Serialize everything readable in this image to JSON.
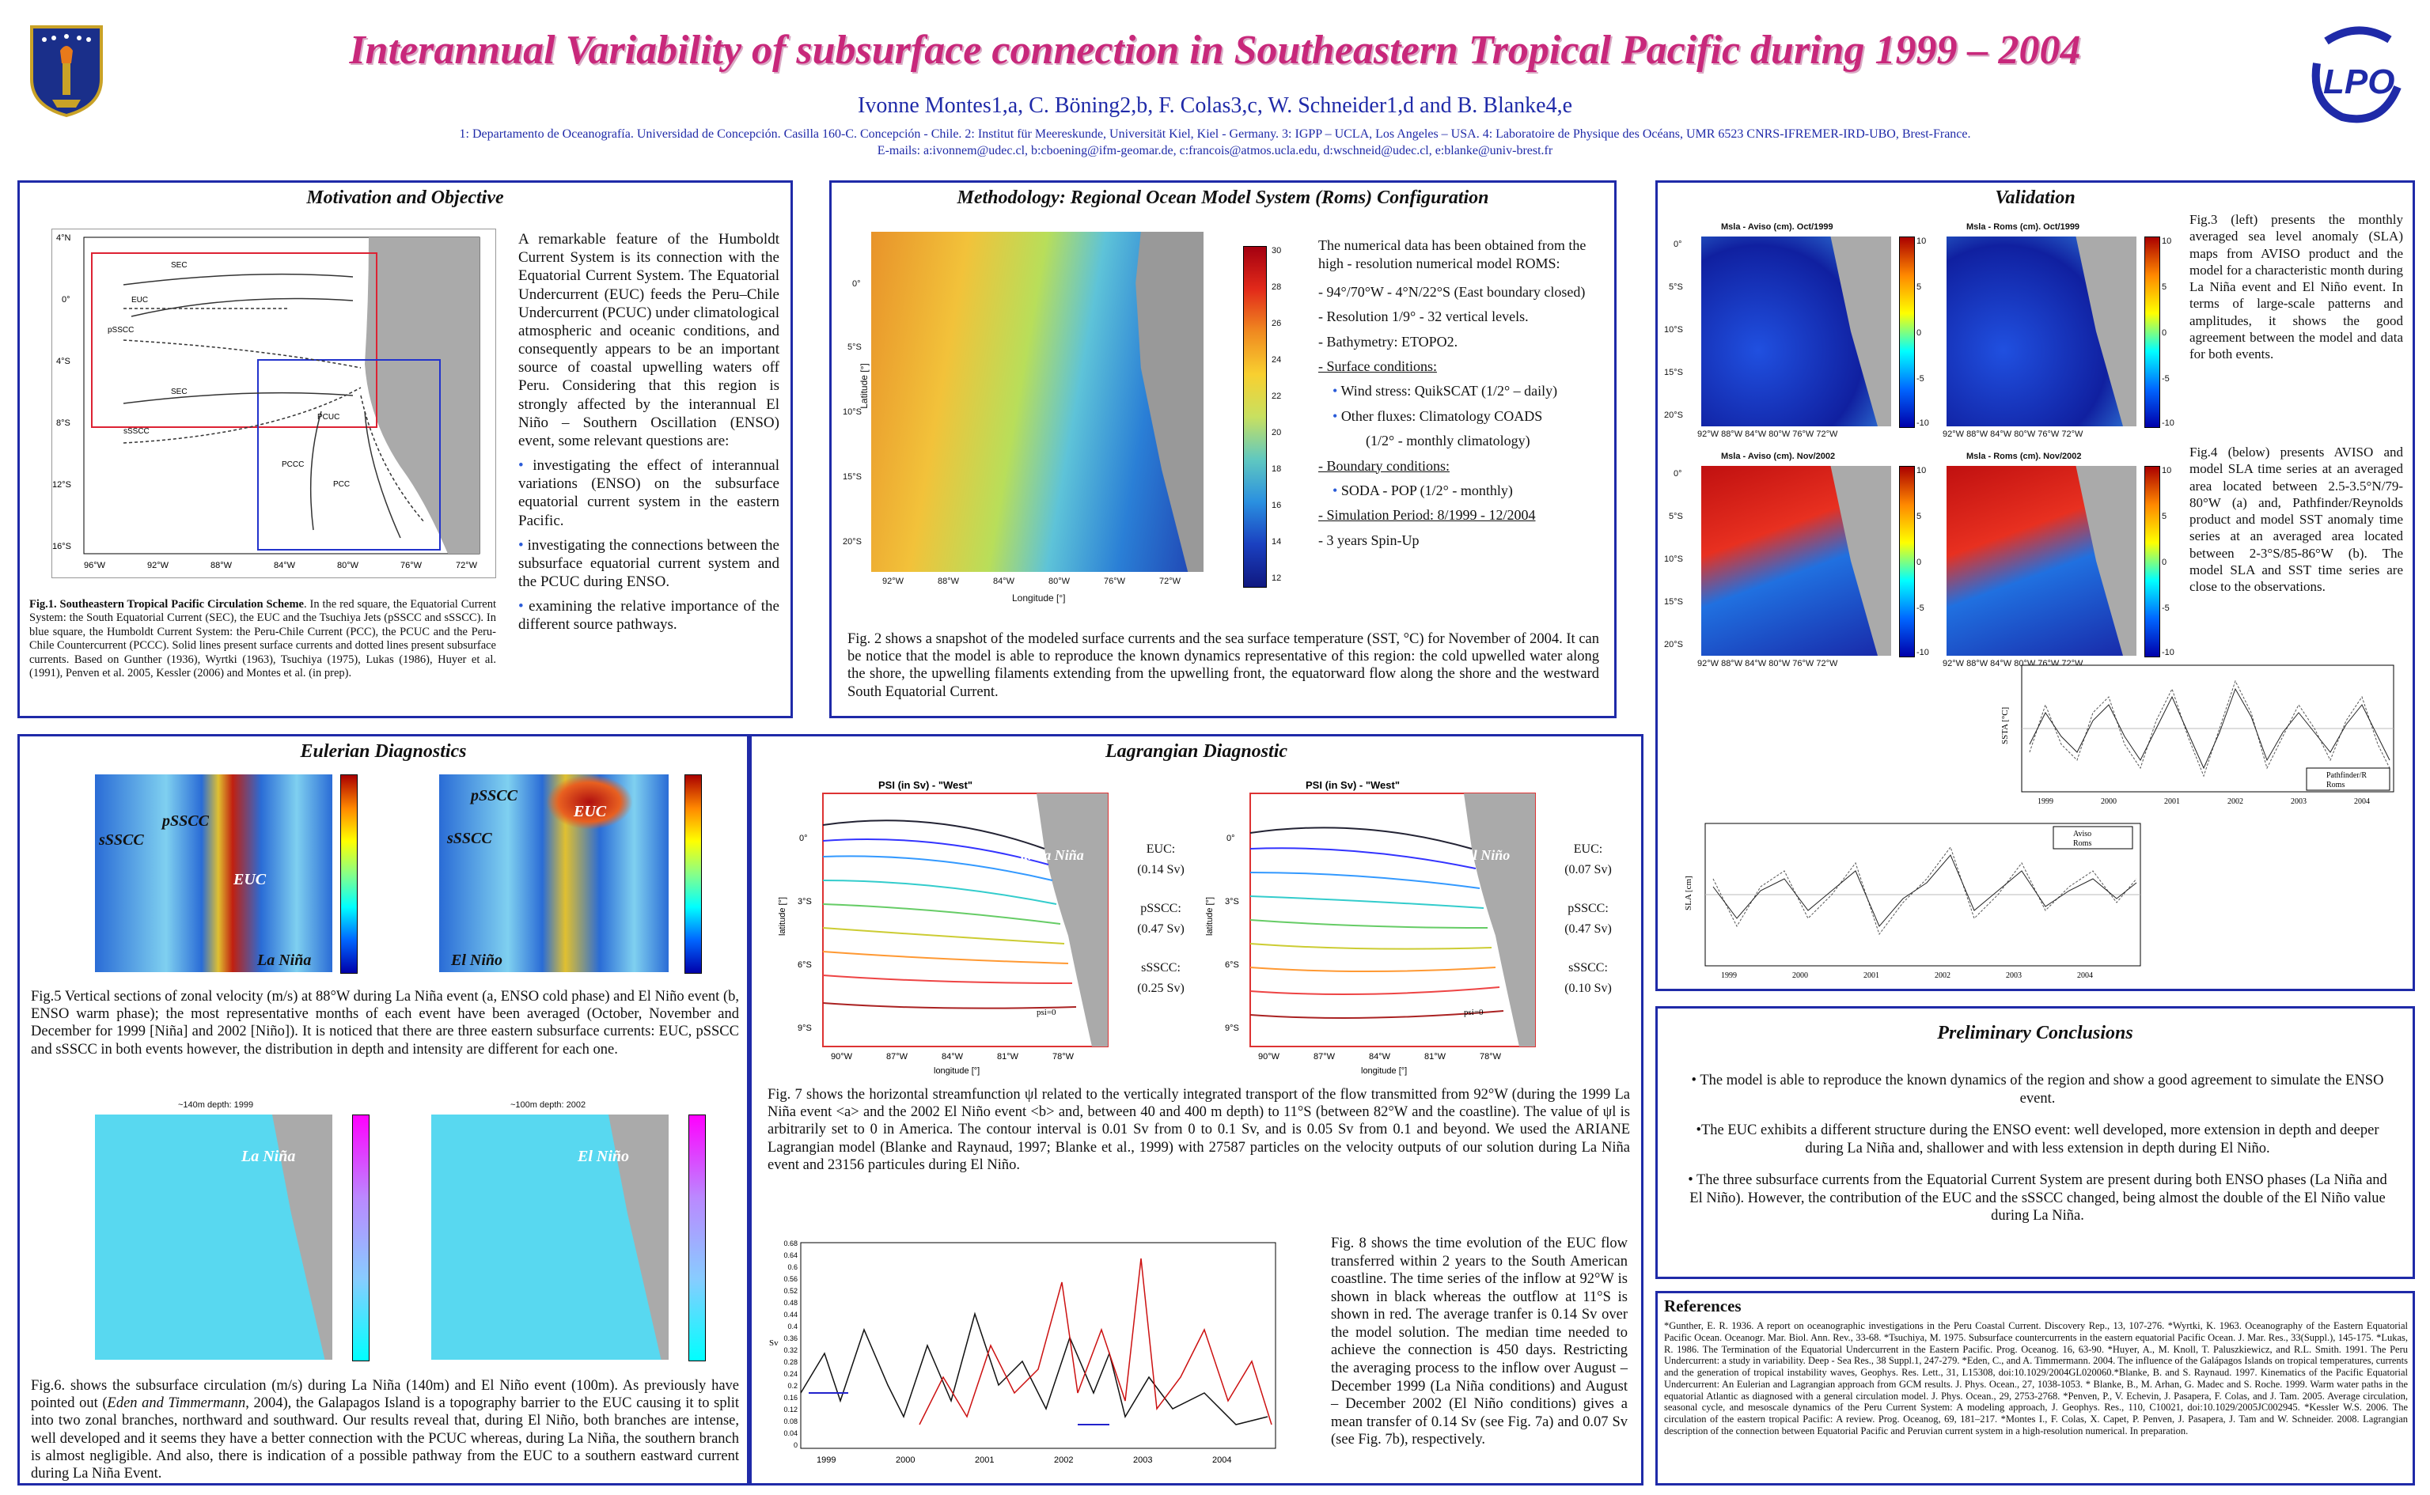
{
  "header": {
    "title": "Interannual Variability of subsurface connection in Southeastern Tropical Pacific during 1999 – 2004",
    "authors": "Ivonne Montes1,a, C. Böning2,b, F. Colas3,c, W. Schneider1,d and B. Blanke4,e",
    "affiliations": "1: Departamento de Oceanografía. Universidad de Concepción. Casilla 160-C. Concepción - Chile. 2: Institut für Meereskunde, Universität Kiel, Kiel - Germany. 3: IGPP – UCLA, Los Angeles – USA. 4: Laboratoire de Physique des Océans, UMR 6523 CNRS-IFREMER-IRD-UBO, Brest-France.",
    "emails": "E-mails: a:ivonnem@udec.cl, b:cboening@ifm-geomar.de, c:francois@atmos.ucla.edu, d:wschneid@udec.cl, e:blanke@univ-brest.fr",
    "logo_right": "LPO"
  },
  "motivation": {
    "title": "Motivation and Objective",
    "text": "A remarkable feature of the Humboldt Current System is its connection with the Equatorial Current System. The Equatorial Undercurrent (EUC) feeds the Peru–Chile Undercurrent (PCUC) under climatological atmospheric and oceanic conditions, and consequently appears to be an important source of coastal upwelling waters off Peru. Considering that this region is strongly affected by the interannual El Niño – Southern Oscillation (ENSO) event, some relevant questions are:",
    "bullets": [
      "investigating the effect of interannual variations (ENSO) on the subsurface equatorial current system in the eastern Pacific.",
      "investigating the connections between the subsurface equatorial current system and the PCUC during ENSO.",
      "examining the relative importance of the different source pathways."
    ],
    "fig_caption_bold": "Fig.1. Southeastern Tropical Pacific Circulation Scheme",
    "fig_caption": ". In the red square, the Equatorial Current System: the South Equatorial Current (SEC), the EUC and the Tsuchiya Jets (pSSCC and sSSCC). In blue square, the Humboldt Current System: the Peru-Chile Current (PCC), the PCUC and the Peru-Chile Countercurrent (PCCC). Solid lines present surface currents and dotted lines present subsurface currents. Based on Gunther (1936), Wyrtki (1963), Tsuchiya (1975), Lukas (1986), Huyer et al. (1991), Penven et al. 2005, Kessler (2006) and Montes et al. (in prep).",
    "map_labels": [
      "SEC",
      "EUC",
      "pSSCC",
      "SEC",
      "sSSCC",
      "PCUC",
      "PCCC",
      "PCC"
    ],
    "lat_ticks": [
      "4°N",
      "0°",
      "4°S",
      "8°S",
      "12°S",
      "16°S"
    ],
    "lon_ticks": [
      "96°W",
      "92°W",
      "88°W",
      "84°W",
      "80°W",
      "76°W",
      "72°W"
    ]
  },
  "methodology": {
    "title": "Methodology: Regional Ocean Model System (Roms) Configuration",
    "intro": "The numerical data has been obtained from the high - resolution numerical model ROMS:",
    "items": [
      "- 94°/70°W - 4°N/22°S (East boundary closed)",
      "- Resolution 1/9° - 32 vertical levels.",
      "- Bathymetry: ETOPO2.",
      "- Surface conditions:",
      "Wind stress:  QuikSCAT (1/2° – daily)",
      "Other fluxes: Climatology COADS",
      "(1/2° - monthly climatology)",
      "- Boundary conditions:",
      "SODA - POP (1/2° - monthly)",
      "- Simulation Period: 8/1999 - 12/2004",
      "- 3 years Spin-Up"
    ],
    "colorbar_ticks": [
      "30",
      "28",
      "26",
      "24",
      "22",
      "20",
      "18",
      "16",
      "14",
      "12"
    ],
    "ylabel": "Latitude [°]",
    "xlabel": "Longitude [°]",
    "lat_ticks": [
      "0°",
      "5°S",
      "10°S",
      "15°S",
      "20°S"
    ],
    "lon_ticks": [
      "92°W",
      "88°W",
      "84°W",
      "80°W",
      "76°W",
      "72°W"
    ],
    "fig_caption": "Fig. 2 shows a snapshot of the modeled surface currents and the sea surface temperature (SST, °C) for November of 2004. It can be notice that the model is able to reproduce the known dynamics representative of this region: the cold upwelled water along the shore, the upwelling filaments extending from the upwelling front, the equatorward flow along the shore and the westward South Equatorial Current."
  },
  "validation": {
    "title": "Validation",
    "maps": [
      "Msla - Aviso (cm). Oct/1999",
      "Msla - Roms (cm). Oct/1999",
      "Msla - Aviso (cm). Nov/2002",
      "Msla - Roms (cm). Nov/2002"
    ],
    "cb_ticks": [
      "10",
      "5",
      "0",
      "-5",
      "-10"
    ],
    "lat_ticks": [
      "0°",
      "5°S",
      "10°S",
      "15°S",
      "20°S"
    ],
    "lon_ticks": "92°W 88°W 84°W 80°W 76°W 72°W",
    "fig3": "Fig.3 (left) presents the monthly averaged sea level anomaly (SLA) maps from AVISO product and the model for a characteristic month during La Niña event and El Niño event. In terms of large-scale patterns and amplitudes, it shows the good agreement between the model and data for both events.",
    "fig4": "Fig.4 (below) presents AVISO and model SLA time series at an averaged area located between 2.5-3.5°N/79-80°W (a) and, Pathfinder/Reynolds product and model SST anomaly time series at an averaged area located between 2-3°S/85-86°W (b). The model SLA and SST time series are close to the observations.",
    "sst_ylabel": "SSTA [°C]",
    "sla_ylabel": "SLA [cm]",
    "legend_sst": [
      "Pathfinder/R",
      "Roms"
    ],
    "legend_sla": [
      "Aviso",
      "Roms"
    ],
    "years": [
      "1999",
      "2000",
      "2001",
      "2002",
      "2003",
      "2004"
    ]
  },
  "eulerian": {
    "title": "Eulerian Diagnostics",
    "labels_a": [
      "sSSCC",
      "pSSCC",
      "EUC",
      "La Niña"
    ],
    "labels_b": [
      "pSSCC",
      "EUC",
      "sSSCC",
      "El Niño"
    ],
    "fig5": "Fig.5 Vertical sections of zonal velocity (m/s) at 88°W during La Niña event (a, ENSO cold phase) and El Niño event (b, ENSO warm phase); the most representative months of each event have been averaged (October, November and December for 1999 [Niña] and 2002 [Niño]). It is noticed that there are three eastern subsurface currents: EUC, pSSCC and sSSCC in both events however, the distribution in depth and intensity are different for each one.",
    "map_titles": [
      "~140m depth: 1999",
      "~100m depth: 2002"
    ],
    "map_labels": [
      "La Niña",
      "El Niño"
    ],
    "fig6_a": "Fig.6. shows the subsurface circulation (m/s) during La Niña (140m) and El Niño event (100m). As previously have pointed out (",
    "fig6_cite": "Eden and Timmermann",
    "fig6_b": ", 2004), the Galapagos Island is a topography barrier to the EUC causing it to split into two zonal branches, northward and southward. Our results reveal that, during El Niño, both branches are intense, well developed and it seems they have a better connection with the PCUC whereas, during La Niña, the southern branch is almost negligible. And also, there is indication of a possible pathway from the EUC to a southern eastward current during La Niña Event."
  },
  "lagrangian": {
    "title": "Lagrangian Diagnostic",
    "psi_title": "PSI (in Sv) - \"West\"",
    "panel_a": {
      "tag": "a. La Niña",
      "euc_label": "EUC:",
      "euc": "(0.14 Sv)",
      "p_label": "pSSCC:",
      "p": "(0.47 Sv)",
      "s_label": "sSSCC:",
      "s": "(0.25 Sv)"
    },
    "panel_b": {
      "tag": "b. El Niño",
      "euc_label": "EUC:",
      "euc": "(0.07 Sv)",
      "p_label": "pSSCC:",
      "p": "(0.47 Sv)",
      "s_label": "sSSCC:",
      "s": "(0.10 Sv)"
    },
    "psi0": "psi=0",
    "lat_ticks": [
      "0°",
      "3°S",
      "6°S",
      "9°S"
    ],
    "lon_ticks": [
      "90°W",
      "87°W",
      "84°W",
      "81°W",
      "78°W"
    ],
    "ylabel": "latitude [°]",
    "xlabel": "longitude [°]",
    "fig7": "Fig. 7 shows the horizontal streamfunction ψl related to the vertically integrated transport of the flow transmitted from 92°W (during the 1999 La Niña event <a> and the 2002 El Niño event <b> and, between 40 and 400 m depth) to 11°S (between 82°W and the coastline). The value of ψl is arbitrarily set to 0 in America. The contour interval is 0.01 Sv from 0 to 0.1 Sv, and is 0.05 Sv from 0.1 and beyond. We used the ARIANE Lagrangian model (Blanke and Raynaud, 1997; Blanke et al., 1999) with 27587 particles on the velocity outputs of our solution during La Niña event and 23156 particules during El Niño.",
    "fig8": "Fig. 8 shows the time evolution of the EUC flow transferred within 2 years to the South American coastline. The time series of the inflow at 92°W is shown in black whereas the outflow at 11°S is shown in red. The average tranfer is 0.14 Sv over the model solution. The median time needed to achieve the connection is 450 days. Restricting the averaging process to the inflow over August – December 1999 (La Niña conditions) and August – December 2002 (El Niño conditions) gives a mean transfer of 0.14 Sv (see Fig. 7a) and 0.07 Sv (see Fig. 7b), respectively.",
    "sv_label": "Sv",
    "sv_ticks": [
      "0.68",
      "0.64",
      "0.6",
      "0.56",
      "0.52",
      "0.48",
      "0.44",
      "0.4",
      "0.36",
      "0.32",
      "0.28",
      "0.24",
      "0.2",
      "0.16",
      "0.12",
      "0.08",
      "0.04",
      "0"
    ]
  },
  "conclusions": {
    "title": "Preliminary  Conclusions",
    "items": [
      "• The model is able to reproduce the known dynamics of the region and show a good agreement to simulate the ENSO event.",
      "•The EUC exhibits a different structure during the ENSO event: well developed, more extension in depth and deeper during La Niña and, shallower and with less extension in depth during El Niño.",
      "• The three subsurface currents from the Equatorial Current System are present during both ENSO phases (La Niña and El Niño). However, the contribution of the EUC and the sSSCC changed, being almost the double of the El Niño value during La Niña."
    ]
  },
  "references": {
    "title": "References",
    "text": "*Gunther, E. R. 1936. A report on oceanographic investigations in the Peru Coastal Current. Discovery Rep., 13, 107-276. *Wyrtki, K. 1963. Oceanography of the Eastern Equatorial Pacific Ocean. Oceanogr. Mar. Biol. Ann. Rev., 33-68. *Tsuchiya, M. 1975. Subsurface countercurrents in the eastern equatorial Pacific Ocean. J. Mar. Res., 33(Suppl.), 145-175. *Lukas, R. 1986. The Termination of the Equatorial Undercurrent in the Eastern Pacific. Prog. Oceanog. 16, 63-90. *Huyer, A., M. Knoll, T. Paluszkiewicz, and R.L. Smith. 1991. The Peru Undercurrent: a study in variability. Deep - Sea Res., 38 Suppl.1, 247-279. *Eden, C., and A. Timmermann. 2004. The influence of the Galápagos Islands on tropical temperatures, currents and the generation of tropical instability waves, Geophys. Res. Lett., 31, L15308, doi:10.1029/2004GL020060.*Blanke, B. and S. Raynaud. 1997. Kinematics of the Pacific Equatorial Undercurrent: An Eulerian and Lagrangian approach from GCM results. J. Phys. Ocean., 27, 1038-1053. * Blanke, B., M. Arhan, G. Madec and S. Roche. 1999. Warm water paths in the equatorial Atlantic as diagnosed with a general circulation model. J. Phys. Ocean., 29, 2753-2768. *Penven, P., V. Echevin, J. Pasapera, F. Colas, and J. Tam. 2005. Average circulation, seasonal cycle, and mesoscale dynamics of the Peru Current System: A modeling approach, J. Geophys. Res., 110, C10021, doi:10.1029/2005JC002945. *Kessler W.S. 2006. The circulation of the eastern tropical Pacific: A review. Prog. Oceanog, 69, 181–217. *Montes I., F. Colas, X. Capet, P. Penven, J. Pasapera, J. Tam and W. Schneider. 2008. Lagrangian description of the connection between Equatorial Pacific and Peruvian current system in a high-resolution numerical. In preparation."
  },
  "colors": {
    "accent": "#c8287b",
    "border": "#1f2aa8",
    "text": "#111111"
  }
}
